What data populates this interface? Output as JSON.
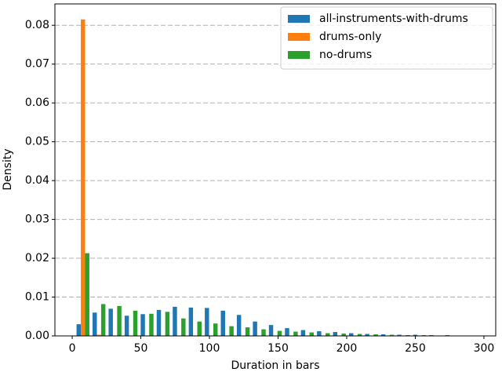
{
  "chart_data": {
    "type": "histogram",
    "xlabel": "Duration in bars",
    "ylabel": "Density",
    "bins": [
      2,
      13.68,
      25.36,
      37.04,
      48.72,
      60.4,
      72.08,
      83.76,
      95.44,
      107.12,
      118.8,
      130.48,
      142.16,
      153.84,
      165.52,
      177.2,
      188.88,
      200.56,
      212.24,
      223.92,
      235.6,
      247.28,
      258.96,
      270.64,
      282.32,
      294
    ],
    "series": [
      {
        "name": "all-instruments-with-drums",
        "color": "#1f77b4",
        "values": [
          0.003,
          0.006,
          0.007,
          0.0052,
          0.0056,
          0.0067,
          0.0075,
          0.0073,
          0.0072,
          0.0065,
          0.0054,
          0.0037,
          0.0028,
          0.002,
          0.0015,
          0.0012,
          0.001,
          0.0007,
          0.0005,
          0.0004,
          0.0003,
          0.0003,
          0.0002,
          0.0002,
          0.0001
        ]
      },
      {
        "name": "drums-only",
        "color": "#ff7f0e",
        "values": [
          0.0815,
          0.0003,
          0.0001,
          0,
          0,
          0,
          0,
          0,
          0,
          0,
          0,
          0,
          0,
          0,
          0,
          0,
          0,
          0,
          0,
          0,
          0,
          0,
          0,
          0,
          0
        ]
      },
      {
        "name": "no-drums",
        "color": "#2ca02c",
        "values": [
          0.0213,
          0.0082,
          0.0077,
          0.0065,
          0.0057,
          0.0062,
          0.0045,
          0.0037,
          0.0032,
          0.0025,
          0.0022,
          0.0017,
          0.0013,
          0.0011,
          0.0009,
          0.0007,
          0.0006,
          0.0005,
          0.0004,
          0.0003,
          0.0002,
          0.0002,
          0.0001,
          0.0001,
          0.0001
        ]
      }
    ],
    "xlim": [
      -12.6,
      308.6
    ],
    "ylim": [
      0,
      0.0855
    ],
    "xticks": [
      0,
      50,
      100,
      150,
      200,
      250,
      300
    ],
    "yticks": [
      {
        "value": 0,
        "label": "0.00"
      },
      0.01,
      0.02,
      0.03,
      0.04,
      0.05,
      0.06,
      0.07,
      0.08
    ],
    "grid": true,
    "legend": "upper right"
  }
}
